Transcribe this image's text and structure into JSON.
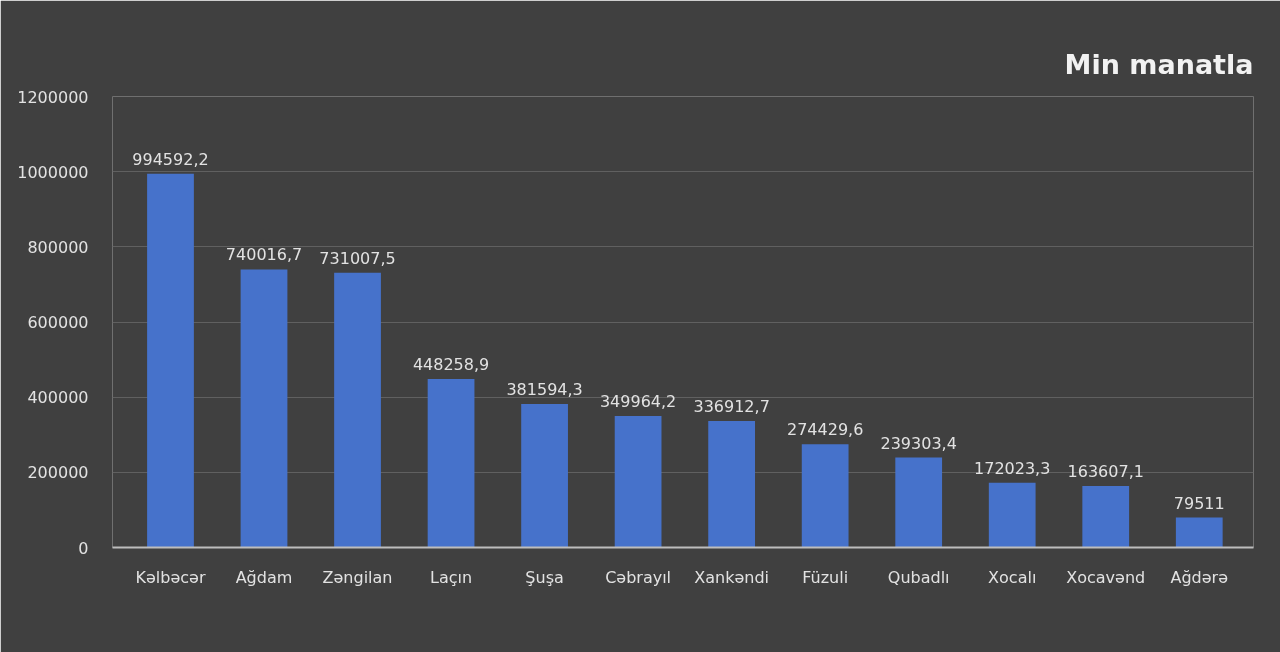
{
  "chart_data": {
    "type": "bar",
    "title": "Min manatla",
    "categories": [
      "Kəlbəcər",
      "Ağdam",
      "Zəngilan",
      "Laçın",
      "Şuşa",
      "Cəbrayıl",
      "Xankəndi",
      "Füzuli",
      "Qubadlı",
      "Xocalı",
      "Xocavənd",
      "Ağdərə"
    ],
    "values": [
      994592.2,
      740016.7,
      731007.5,
      448258.9,
      381594.3,
      349964.2,
      336912.7,
      274429.6,
      239303.4,
      172023.3,
      163607.1,
      79511
    ],
    "value_labels": [
      "994592,2",
      "740016,7",
      "731007,5",
      "448258,9",
      "381594,3",
      "349964,2",
      "336912,7",
      "274429,6",
      "239303,4",
      "172023,3",
      "163607,1",
      "79511"
    ],
    "color": "#4672cb",
    "ylim": [
      0,
      1200000
    ],
    "yticks": [
      0,
      200000,
      400000,
      600000,
      800000,
      1000000,
      1200000
    ],
    "grid": "y"
  }
}
